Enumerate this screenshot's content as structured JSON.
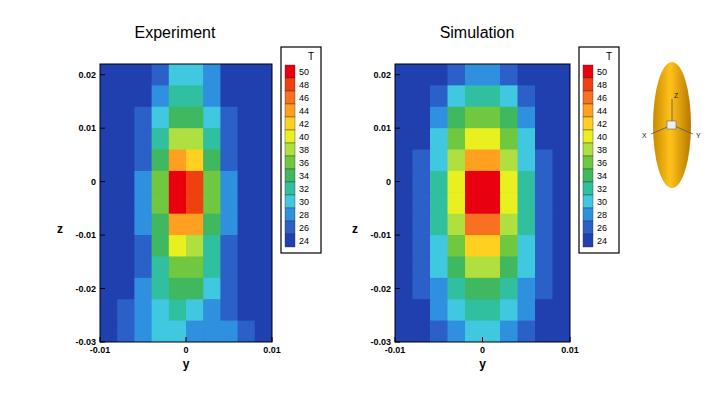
{
  "chart_data": [
    {
      "type": "heatmap",
      "title": "Experiment",
      "x_label": "y",
      "y_label": "z",
      "xlim": [
        -0.01,
        0.01
      ],
      "xticks": [
        -0.01,
        0,
        0.01
      ],
      "ylim": [
        -0.03,
        0.022
      ],
      "yticks": [
        -0.03,
        -0.02,
        -0.01,
        0,
        0.01,
        0.02
      ],
      "grid": false,
      "x": [
        -0.009,
        -0.007,
        -0.005,
        -0.003,
        -0.001,
        0.001,
        0.003,
        0.005,
        0.007,
        0.009
      ],
      "y": [
        0.02,
        0.016,
        0.012,
        0.008,
        0.004,
        0,
        -0.004,
        -0.008,
        -0.012,
        -0.016,
        -0.02,
        -0.024,
        -0.028
      ],
      "values": [
        [
          24,
          24,
          24,
          26,
          30,
          30,
          28,
          24,
          24,
          24
        ],
        [
          24,
          24,
          24,
          28,
          32,
          32,
          28,
          24,
          24,
          24
        ],
        [
          24,
          24,
          26,
          30,
          34,
          34,
          30,
          26,
          24,
          24
        ],
        [
          24,
          24,
          26,
          32,
          38,
          38,
          32,
          26,
          24,
          24
        ],
        [
          24,
          24,
          26,
          34,
          44,
          42,
          34,
          26,
          24,
          24
        ],
        [
          24,
          24,
          28,
          36,
          50,
          48,
          36,
          28,
          24,
          24
        ],
        [
          24,
          24,
          28,
          36,
          50,
          48,
          36,
          28,
          24,
          24
        ],
        [
          24,
          24,
          28,
          34,
          44,
          44,
          34,
          28,
          24,
          24
        ],
        [
          24,
          24,
          26,
          34,
          40,
          38,
          32,
          26,
          24,
          24
        ],
        [
          24,
          24,
          26,
          32,
          36,
          36,
          32,
          26,
          24,
          24
        ],
        [
          24,
          24,
          28,
          32,
          34,
          34,
          30,
          26,
          24,
          24
        ],
        [
          24,
          26,
          28,
          30,
          32,
          30,
          28,
          26,
          24,
          24
        ],
        [
          24,
          26,
          28,
          30,
          30,
          28,
          28,
          28,
          26,
          24
        ]
      ],
      "colorbar": {
        "title": "T",
        "range": [
          24,
          50
        ],
        "ticks": [
          50,
          48,
          46,
          44,
          42,
          40,
          38,
          36,
          34,
          32,
          30,
          28,
          26,
          24
        ],
        "colors": [
          "#e8000f",
          "#f04010",
          "#f87020",
          "#ffa020",
          "#ffd020",
          "#e8f020",
          "#b0e040",
          "#70c840",
          "#40b860",
          "#30c0a0",
          "#40c8e0",
          "#3090e0",
          "#2a60c8",
          "#2040b0"
        ]
      }
    },
    {
      "type": "heatmap",
      "title": "Simulation",
      "x_label": "y",
      "y_label": "z",
      "xlim": [
        -0.01,
        0.01
      ],
      "xticks": [
        -0.01,
        0,
        0.01
      ],
      "ylim": [
        -0.03,
        0.022
      ],
      "yticks": [
        -0.03,
        -0.02,
        -0.01,
        0,
        0.01,
        0.02
      ],
      "grid": false,
      "x": [
        -0.009,
        -0.007,
        -0.005,
        -0.003,
        -0.001,
        0.001,
        0.003,
        0.005,
        0.007,
        0.009
      ],
      "y": [
        0.02,
        0.016,
        0.012,
        0.008,
        0.004,
        0,
        -0.004,
        -0.008,
        -0.012,
        -0.016,
        -0.02,
        -0.024,
        -0.028
      ],
      "values": [
        [
          24,
          24,
          24,
          26,
          28,
          28,
          26,
          24,
          24,
          24
        ],
        [
          24,
          24,
          26,
          30,
          32,
          32,
          30,
          26,
          24,
          24
        ],
        [
          24,
          24,
          28,
          34,
          36,
          36,
          34,
          28,
          24,
          24
        ],
        [
          24,
          24,
          30,
          36,
          40,
          40,
          36,
          30,
          24,
          24
        ],
        [
          24,
          26,
          30,
          38,
          44,
          44,
          38,
          30,
          26,
          24
        ],
        [
          24,
          26,
          32,
          40,
          50,
          50,
          40,
          32,
          26,
          24
        ],
        [
          24,
          26,
          32,
          40,
          50,
          50,
          40,
          32,
          26,
          24
        ],
        [
          24,
          26,
          32,
          38,
          46,
          46,
          38,
          32,
          26,
          24
        ],
        [
          24,
          26,
          30,
          36,
          42,
          42,
          36,
          30,
          26,
          24
        ],
        [
          24,
          26,
          30,
          34,
          38,
          38,
          34,
          30,
          26,
          24
        ],
        [
          24,
          26,
          28,
          32,
          34,
          34,
          32,
          28,
          26,
          24
        ],
        [
          24,
          24,
          28,
          30,
          32,
          32,
          30,
          28,
          24,
          24
        ],
        [
          24,
          24,
          26,
          28,
          30,
          30,
          28,
          26,
          24,
          24
        ]
      ],
      "colorbar": {
        "title": "T",
        "range": [
          24,
          50
        ],
        "ticks": [
          50,
          48,
          46,
          44,
          42,
          40,
          38,
          36,
          34,
          32,
          30,
          28,
          26,
          24
        ],
        "colors": [
          "#e8000f",
          "#f04010",
          "#f87020",
          "#ffa020",
          "#ffd020",
          "#e8f020",
          "#b0e040",
          "#70c840",
          "#40b860",
          "#30c0a0",
          "#40c8e0",
          "#3090e0",
          "#2a60c8",
          "#2040b0"
        ]
      }
    }
  ],
  "icon": {
    "axis_labels": [
      "Z",
      "X",
      "Y"
    ]
  }
}
